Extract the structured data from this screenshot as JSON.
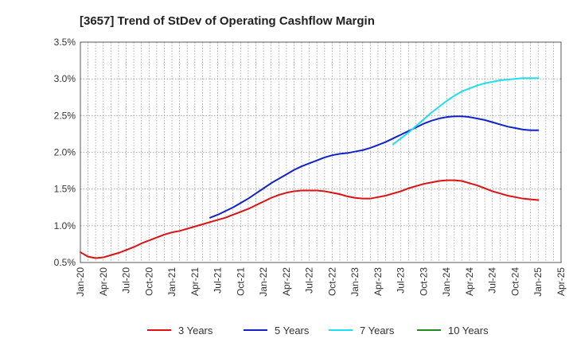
{
  "chart_data": {
    "type": "line",
    "title": "[3657]  Trend of StDev of Operating Cashflow Margin",
    "xlabel": "",
    "ylabel": "",
    "ylim": [
      0.5,
      3.5
    ],
    "y_ticks": [
      0.5,
      1.0,
      1.5,
      2.0,
      2.5,
      3.0,
      3.5
    ],
    "y_tick_labels": [
      "0.5%",
      "1.0%",
      "1.5%",
      "2.0%",
      "2.5%",
      "3.0%",
      "3.5%"
    ],
    "x_tick_labels": [
      "Jan-20",
      "Apr-20",
      "Jul-20",
      "Oct-20",
      "Jan-21",
      "Apr-21",
      "Jul-21",
      "Oct-21",
      "Jan-22",
      "Apr-22",
      "Jul-22",
      "Oct-22",
      "Jan-23",
      "Apr-23",
      "Jul-23",
      "Oct-23",
      "Jan-24",
      "Apr-24",
      "Jul-24",
      "Oct-24",
      "Jan-25",
      "Apr-25"
    ],
    "x_month_range": [
      0,
      63
    ],
    "grid": true,
    "legend_position": "bottom",
    "series": [
      {
        "name": "3 Years",
        "color": "#dd1111",
        "x": [
          0,
          1,
          2,
          3,
          4,
          5,
          6,
          7,
          8,
          9,
          10,
          11,
          12,
          13,
          14,
          15,
          16,
          17,
          18,
          19,
          20,
          21,
          22,
          23,
          24,
          25,
          26,
          27,
          28,
          29,
          30,
          31,
          32,
          33,
          34,
          35,
          36,
          37,
          38,
          39,
          40,
          41,
          42,
          43,
          44,
          45,
          46,
          47,
          48,
          49,
          50,
          51,
          52,
          53,
          54,
          55,
          56,
          57,
          58,
          59,
          60
        ],
        "values": [
          0.64,
          0.58,
          0.56,
          0.57,
          0.6,
          0.63,
          0.67,
          0.71,
          0.76,
          0.8,
          0.84,
          0.88,
          0.91,
          0.93,
          0.96,
          0.99,
          1.02,
          1.05,
          1.08,
          1.11,
          1.15,
          1.19,
          1.23,
          1.28,
          1.33,
          1.38,
          1.42,
          1.45,
          1.47,
          1.48,
          1.48,
          1.48,
          1.47,
          1.45,
          1.43,
          1.4,
          1.38,
          1.37,
          1.37,
          1.39,
          1.41,
          1.44,
          1.47,
          1.51,
          1.54,
          1.57,
          1.59,
          1.61,
          1.62,
          1.62,
          1.61,
          1.58,
          1.55,
          1.51,
          1.47,
          1.44,
          1.41,
          1.39,
          1.37,
          1.36,
          1.35
        ]
      },
      {
        "name": "5 Years",
        "color": "#1122cc",
        "x": [
          17,
          18,
          19,
          20,
          21,
          22,
          23,
          24,
          25,
          26,
          27,
          28,
          29,
          30,
          31,
          32,
          33,
          34,
          35,
          36,
          37,
          38,
          39,
          40,
          41,
          42,
          43,
          44,
          45,
          46,
          47,
          48,
          49,
          50,
          51,
          52,
          53,
          54,
          55,
          56,
          57,
          58,
          59,
          60
        ],
        "values": [
          1.11,
          1.15,
          1.2,
          1.25,
          1.31,
          1.37,
          1.44,
          1.51,
          1.58,
          1.64,
          1.7,
          1.76,
          1.81,
          1.85,
          1.89,
          1.93,
          1.96,
          1.98,
          1.99,
          2.01,
          2.03,
          2.06,
          2.1,
          2.14,
          2.19,
          2.24,
          2.29,
          2.34,
          2.39,
          2.43,
          2.46,
          2.48,
          2.49,
          2.49,
          2.48,
          2.46,
          2.44,
          2.41,
          2.38,
          2.35,
          2.33,
          2.31,
          2.3,
          2.3
        ]
      },
      {
        "name": "7 Years",
        "color": "#22ddee",
        "x": [
          41,
          42,
          43,
          44,
          45,
          46,
          47,
          48,
          49,
          50,
          51,
          52,
          53,
          54,
          55,
          56,
          57,
          58,
          59,
          60
        ],
        "values": [
          2.11,
          2.19,
          2.27,
          2.36,
          2.45,
          2.54,
          2.62,
          2.7,
          2.77,
          2.83,
          2.87,
          2.91,
          2.94,
          2.96,
          2.98,
          2.99,
          3.0,
          3.01,
          3.01,
          3.01
        ]
      },
      {
        "name": "10 Years",
        "color": "#228822",
        "x": [],
        "values": []
      }
    ]
  }
}
